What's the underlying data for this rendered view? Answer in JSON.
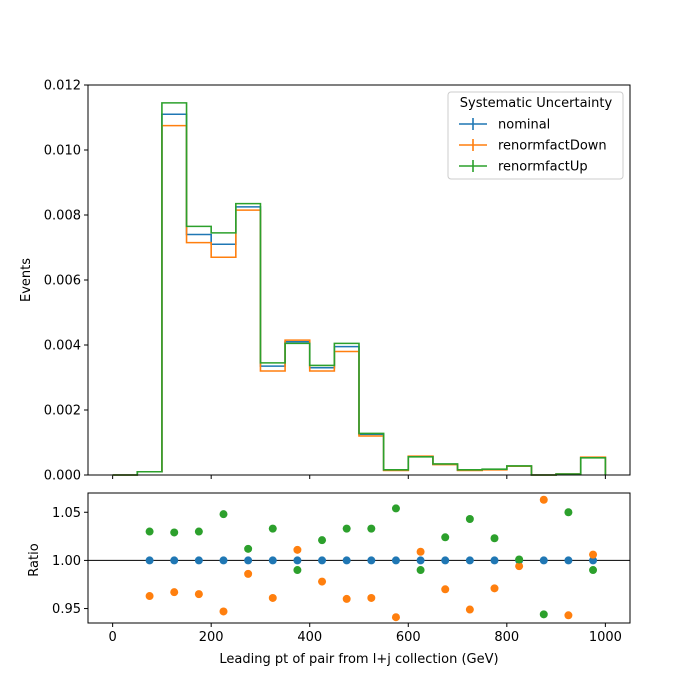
{
  "chart_data": [
    {
      "type": "histogram",
      "xlabel": "",
      "ylabel": "Events",
      "xlim": [
        -50,
        1050
      ],
      "ylim": [
        0,
        0.012
      ],
      "xticks": [
        0,
        200,
        400,
        600,
        800,
        1000
      ],
      "yticks": [
        "0.000",
        "0.002",
        "0.004",
        "0.006",
        "0.008",
        "0.010",
        "0.012"
      ],
      "bin_edges": [
        0,
        50,
        100,
        150,
        200,
        250,
        300,
        350,
        400,
        450,
        500,
        550,
        600,
        650,
        700,
        750,
        800,
        850,
        900,
        950,
        1000
      ],
      "legend": {
        "title": "Systematic Uncertainty",
        "placement": "upper right"
      },
      "series": [
        {
          "name": "nominal",
          "color": "#1f77b4",
          "values": [
            0.0,
            0.0001,
            0.0111,
            0.0074,
            0.0071,
            0.00825,
            0.00335,
            0.0041,
            0.0033,
            0.00395,
            0.00125,
            0.00015,
            0.00057,
            0.00033,
            0.00015,
            0.00017,
            0.00027,
            0.0,
            3e-05,
            0.00054
          ]
        },
        {
          "name": "renormfactDown",
          "color": "#ff7f0e",
          "values": [
            0.0,
            0.0001,
            0.01075,
            0.00715,
            0.0067,
            0.00815,
            0.0032,
            0.00415,
            0.0032,
            0.0038,
            0.0012,
            0.00014,
            0.00058,
            0.00032,
            0.00014,
            0.00016,
            0.00027,
            0.0,
            3e-05,
            0.00055
          ]
        },
        {
          "name": "renormfactUp",
          "color": "#2ca02c",
          "values": [
            0.0,
            0.0001,
            0.01145,
            0.00765,
            0.00745,
            0.00835,
            0.00345,
            0.00405,
            0.00337,
            0.00405,
            0.00128,
            0.00016,
            0.00056,
            0.00034,
            0.00016,
            0.00018,
            0.00028,
            0.0,
            3e-05,
            0.00053
          ]
        }
      ]
    },
    {
      "type": "scatter",
      "xlabel": "Leading pt of pair from l+j collection (GeV)",
      "ylabel": "Ratio",
      "xlim": [
        -50,
        1050
      ],
      "ylim": [
        0.935,
        1.07
      ],
      "xticks": [
        0,
        200,
        400,
        600,
        800,
        1000
      ],
      "yticks": [
        "0.95",
        "1.00",
        "1.05"
      ],
      "reference_line": 1.0,
      "x": [
        75,
        125,
        175,
        225,
        275,
        325,
        375,
        425,
        475,
        525,
        575,
        625,
        675,
        725,
        775,
        825,
        875,
        925,
        975
      ],
      "series": [
        {
          "name": "nominal",
          "color": "#1f77b4",
          "values": [
            1.0,
            1.0,
            1.0,
            1.0,
            1.0,
            1.0,
            1.0,
            1.0,
            1.0,
            1.0,
            1.0,
            1.0,
            1.0,
            1.0,
            1.0,
            1.0,
            1.0,
            1.0,
            1.0
          ]
        },
        {
          "name": "renormfactDown",
          "color": "#ff7f0e",
          "values": [
            0.963,
            0.967,
            0.965,
            0.947,
            0.986,
            0.961,
            1.011,
            0.978,
            0.96,
            0.961,
            0.941,
            1.009,
            0.97,
            0.949,
            0.971,
            0.994,
            1.063,
            0.943,
            1.006
          ]
        },
        {
          "name": "renormfactUp",
          "color": "#2ca02c",
          "values": [
            1.03,
            1.029,
            1.03,
            1.048,
            1.012,
            1.033,
            0.99,
            1.021,
            1.033,
            1.033,
            1.054,
            0.99,
            1.024,
            1.043,
            1.023,
            1.001,
            0.944,
            1.05,
            0.99
          ]
        }
      ]
    }
  ]
}
